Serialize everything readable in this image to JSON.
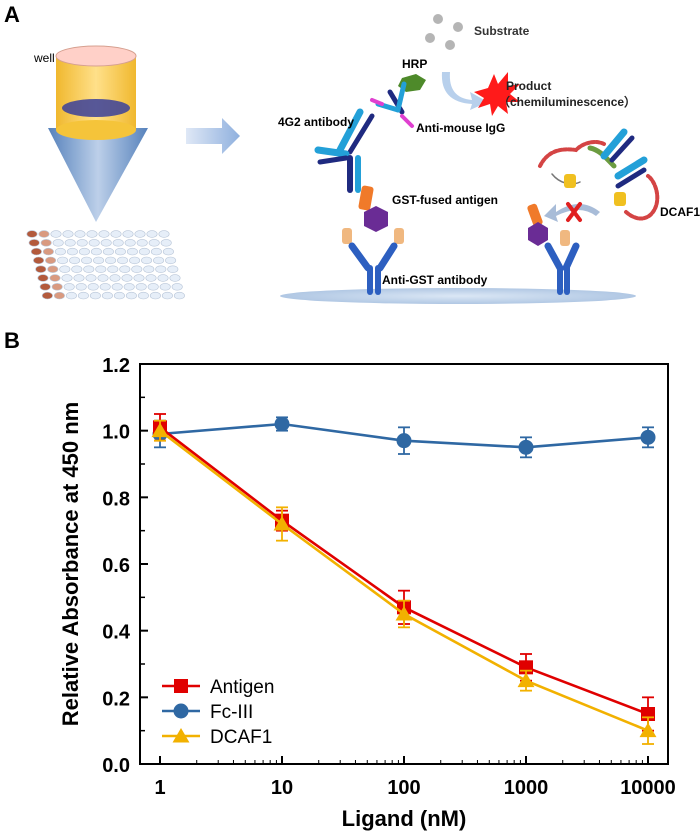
{
  "panel_a": {
    "letter": "A",
    "well_label": "well",
    "labels": {
      "substrate": "Substrate",
      "hrp": "HRP",
      "product": "Product",
      "product_note": "（chemiluminescence）",
      "antibody_4g2": "4G2 antibody",
      "anti_mouse": "Anti-mouse IgG",
      "gst_antigen": "GST-fused antigen",
      "anti_gst": "Anti-GST antibody",
      "dcaf1": "DCAF1"
    }
  },
  "panel_b": {
    "letter": "B"
  },
  "colors": {
    "antigen": "#e00000",
    "fc3": "#2f68a3",
    "dcaf1": "#f2b100",
    "axis": "#000000"
  },
  "chart_data": {
    "type": "line",
    "xscale": "log",
    "x": [
      1,
      10,
      100,
      1000,
      10000
    ],
    "xticks": [
      "1",
      "10",
      "100",
      "1000",
      "10000"
    ],
    "yticks": [
      "0.0",
      "0.2",
      "0.4",
      "0.6",
      "0.8",
      "1.0",
      "1.2"
    ],
    "xlabel": "Ligand (nM)",
    "ylabel": "Relative Absorbance at 450 nm",
    "ylim": [
      0,
      1.2
    ],
    "legend_position": "bottom-left",
    "series": [
      {
        "name": "Antigen",
        "marker": "square",
        "color": "#e00000",
        "values": [
          1.01,
          0.73,
          0.47,
          0.29,
          0.15
        ],
        "errors": [
          0.04,
          0.03,
          0.05,
          0.04,
          0.05
        ]
      },
      {
        "name": "Fc-III",
        "marker": "circle",
        "color": "#2f68a3",
        "values": [
          0.99,
          1.02,
          0.97,
          0.95,
          0.98
        ],
        "errors": [
          0.04,
          0.02,
          0.04,
          0.03,
          0.03
        ]
      },
      {
        "name": "DCAF1",
        "marker": "triangle",
        "color": "#f2b100",
        "values": [
          1.0,
          0.72,
          0.45,
          0.25,
          0.1
        ],
        "errors": [
          0.03,
          0.05,
          0.04,
          0.03,
          0.04
        ]
      }
    ]
  }
}
